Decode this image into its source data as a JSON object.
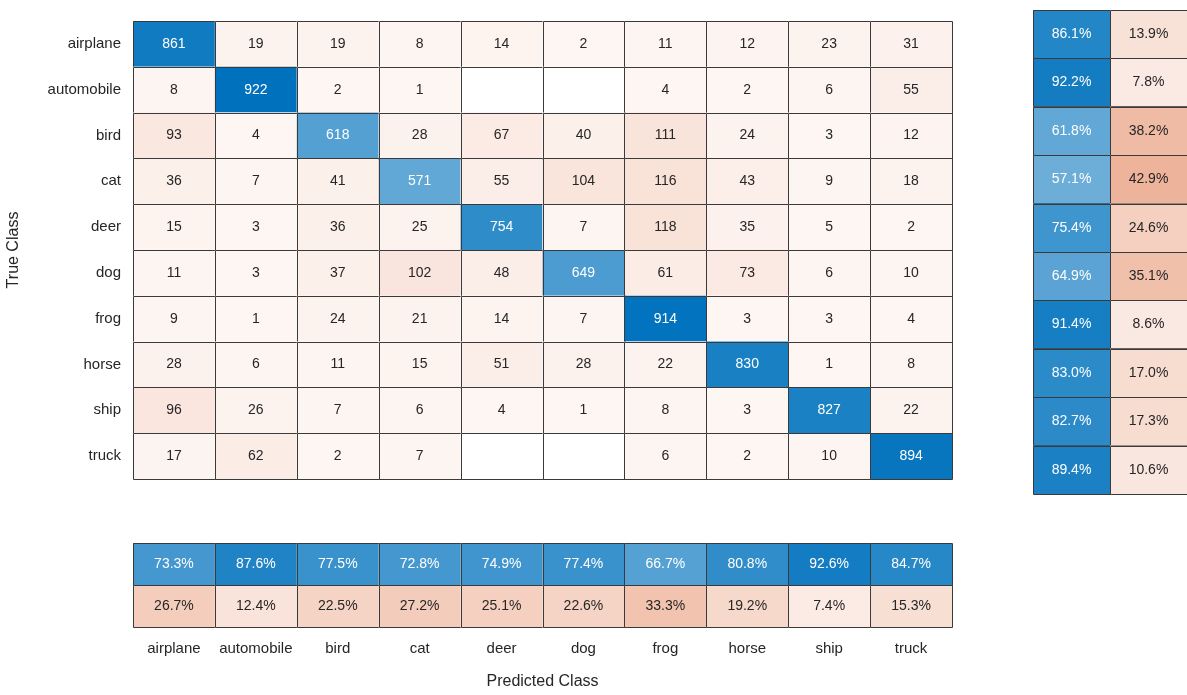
{
  "chart_data": [
    {
      "type": "heatmap",
      "ylabel": "True Class",
      "tick_labels": "y",
      "data_labels": true,
      "categories": [
        null,
        null,
        null,
        null,
        null,
        null,
        null,
        null,
        null,
        null
      ],
      "y_categories": [
        "airplane",
        "automobile",
        "bird",
        "cat",
        "deer",
        "dog",
        "frog",
        "horse",
        "ship",
        "truck"
      ],
      "cells": [
        [
          861,
          19,
          19,
          8,
          14,
          2,
          11,
          12,
          23,
          31
        ],
        [
          8,
          922,
          2,
          1,
          null,
          null,
          4,
          2,
          6,
          55
        ],
        [
          93,
          4,
          618,
          28,
          67,
          40,
          111,
          24,
          3,
          12
        ],
        [
          36,
          7,
          41,
          571,
          55,
          104,
          116,
          43,
          9,
          18
        ],
        [
          15,
          3,
          36,
          25,
          754,
          7,
          118,
          35,
          5,
          2
        ],
        [
          11,
          3,
          37,
          102,
          48,
          649,
          61,
          73,
          6,
          10
        ],
        [
          9,
          1,
          24,
          21,
          14,
          7,
          914,
          3,
          3,
          4
        ],
        [
          28,
          6,
          11,
          15,
          51,
          28,
          22,
          830,
          1,
          8
        ],
        [
          96,
          26,
          7,
          6,
          4,
          1,
          8,
          3,
          827,
          22
        ],
        [
          17,
          62,
          2,
          7,
          null,
          null,
          6,
          2,
          10,
          894
        ]
      ]
    },
    {
      "type": "heatmap",
      "tick_labels": false,
      "categories": [
        null,
        null
      ],
      "y_categories": [
        null,
        null,
        null,
        null,
        null,
        null,
        null,
        null,
        null,
        null
      ],
      "cells": [
        [
          86.1,
          13.9
        ],
        [
          92.2,
          7.8
        ],
        [
          61.8,
          38.2
        ],
        [
          57.1,
          42.9
        ],
        [
          75.4,
          24.6
        ],
        [
          64.9,
          35.1
        ],
        [
          91.4,
          8.6
        ],
        [
          83.0,
          17.0
        ],
        [
          82.7,
          17.3
        ],
        [
          89.4,
          10.6
        ]
      ],
      "cell_labels": [
        [
          "86.1%",
          "13.9%"
        ],
        [
          "92.2%",
          "7.8%"
        ],
        [
          "61.8%",
          "38.2%"
        ],
        [
          "57.1%",
          "42.9%"
        ],
        [
          "75.4%",
          "24.6%"
        ],
        [
          "64.9%",
          "35.1%"
        ],
        [
          "91.4%",
          "8.6%"
        ],
        [
          "83.0%",
          "17.0%"
        ],
        [
          "82.7%",
          "17.3%"
        ],
        [
          "89.4%",
          "10.6%"
        ]
      ]
    },
    {
      "type": "heatmap",
      "xlabel": "Predicted Class",
      "tick_labels": "x",
      "categories": [
        "airplane",
        "automobile",
        "bird",
        "cat",
        "deer",
        "dog",
        "frog",
        "horse",
        "ship",
        "truck"
      ],
      "y_categories": [
        null,
        null
      ],
      "cells": [
        [
          73.3,
          87.6,
          77.5,
          72.8,
          74.9,
          77.4,
          66.7,
          80.8,
          92.6,
          84.7
        ],
        [
          26.7,
          12.4,
          22.5,
          27.2,
          25.1,
          22.6,
          33.3,
          19.2,
          7.4,
          15.3
        ]
      ],
      "cell_labels": [
        [
          "73.3%",
          "87.6%",
          "77.5%",
          "72.8%",
          "74.9%",
          "77.4%",
          "66.7%",
          "80.8%",
          "92.6%",
          "84.7%"
        ],
        [
          "26.7%",
          "12.4%",
          "22.5%",
          "27.2%",
          "25.1%",
          "22.6%",
          "33.3%",
          "19.2%",
          "7.4%",
          "15.3%"
        ]
      ]
    }
  ]
}
